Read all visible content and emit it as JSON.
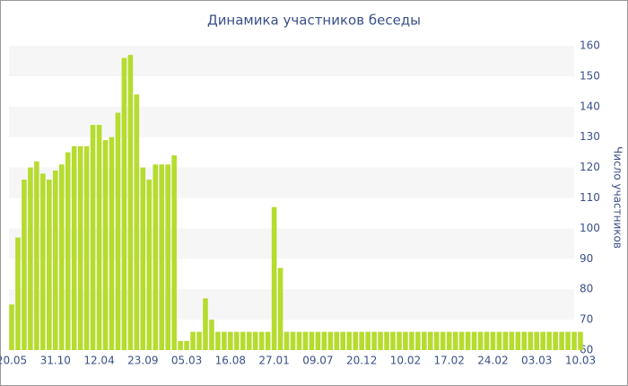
{
  "chart_data": {
    "type": "bar",
    "title": "Динамика участников беседы",
    "y_label": "Число участников",
    "categories": [
      "20.05",
      null,
      null,
      null,
      null,
      null,
      null,
      "31.10",
      null,
      null,
      null,
      null,
      null,
      null,
      "12.04",
      null,
      null,
      null,
      null,
      null,
      null,
      "23.09",
      null,
      null,
      null,
      null,
      null,
      null,
      "05.03",
      null,
      null,
      null,
      null,
      null,
      null,
      "16.08",
      null,
      null,
      null,
      null,
      null,
      null,
      "27.01",
      null,
      null,
      null,
      null,
      null,
      null,
      "09.07",
      null,
      null,
      null,
      null,
      null,
      null,
      "20.12",
      null,
      null,
      null,
      null,
      null,
      null,
      "10.02",
      null,
      null,
      null,
      null,
      null,
      null,
      "17.02",
      null,
      null,
      null,
      null,
      null,
      null,
      "24.02",
      null,
      null,
      null,
      null,
      null,
      null,
      "03.03",
      null,
      null,
      null,
      null,
      null,
      null,
      "10.03"
    ],
    "values": [
      75,
      97,
      116,
      120,
      122,
      118,
      116,
      119,
      121,
      125,
      127,
      127,
      127,
      134,
      134,
      129,
      130,
      138,
      156,
      157,
      144,
      120,
      116,
      121,
      121,
      121,
      124,
      63,
      63,
      66,
      66,
      77,
      70,
      66,
      66,
      66,
      66,
      66,
      66,
      66,
      66,
      66,
      107,
      87,
      66,
      66,
      66,
      66,
      66,
      66,
      66,
      66,
      66,
      66,
      66,
      66,
      66,
      66,
      66,
      66,
      66,
      66,
      66,
      66,
      66,
      66,
      66,
      66,
      66,
      66,
      66,
      66,
      66,
      66,
      66,
      66,
      66,
      66,
      66,
      66,
      66,
      66,
      66,
      66,
      66,
      66,
      66,
      66,
      66,
      66,
      66,
      66
    ],
    "color": "#b5dc2e",
    "ylim": [
      60,
      160
    ],
    "yticks": [
      60,
      70,
      80,
      90,
      100,
      110,
      120,
      130,
      140,
      150,
      160
    ],
    "grid": "bands"
  }
}
